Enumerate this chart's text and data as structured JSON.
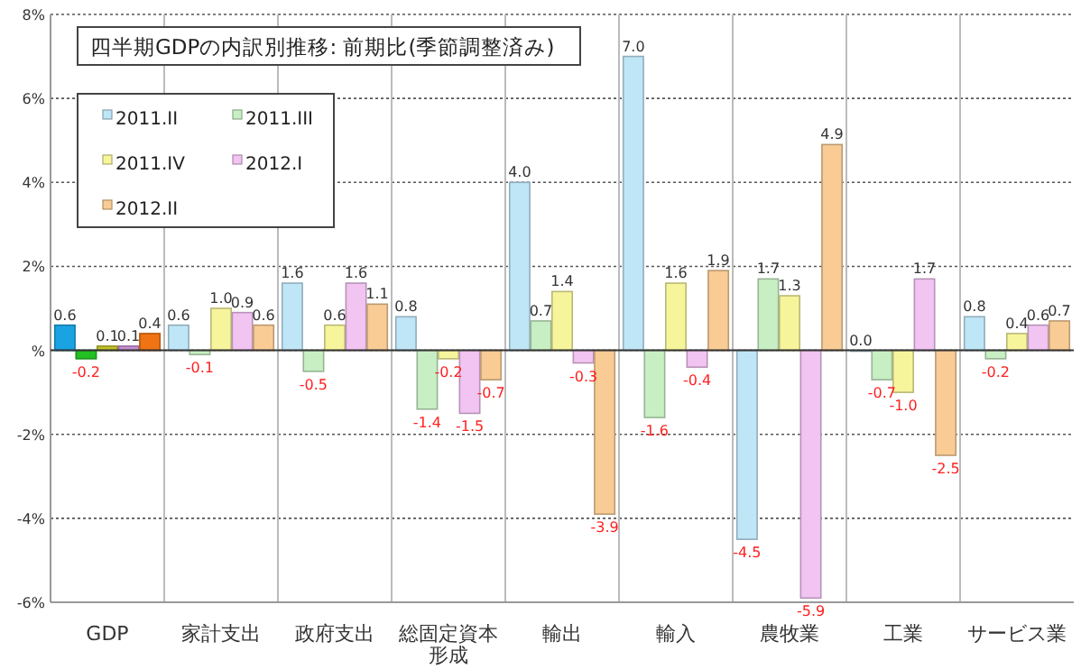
{
  "chart_data": {
    "type": "bar",
    "title": "四半期GDPの内訳別推移: 前期比(季節調整済み)",
    "categories": [
      "GDP",
      "家計支出",
      "政府支出",
      "総固定資本形成",
      "輸出",
      "輸入",
      "農牧業",
      "工業",
      "サービス業"
    ],
    "series": [
      {
        "name": "2011.II",
        "color": "#bfe6f7",
        "colors": [
          "#1aa3e3",
          "#bfe6f7",
          "#bfe6f7",
          "#bfe6f7",
          "#bfe6f7",
          "#bfe6f7",
          "#bfe6f7",
          "#bfe6f7",
          "#bfe6f7"
        ],
        "values": [
          0.6,
          0.6,
          1.6,
          0.8,
          4.0,
          7.0,
          -4.5,
          0.0,
          0.8
        ],
        "value_labels": [
          "0.6",
          "0.6",
          "1.6",
          "0.8",
          "4.0",
          "7.0",
          "-4.5",
          "0.0",
          "0.8"
        ]
      },
      {
        "name": "2011.III",
        "color": "#c8efc4",
        "colors": [
          "#22c022",
          "#c8efc4",
          "#c8efc4",
          "#c8efc4",
          "#c8efc4",
          "#c8efc4",
          "#c8efc4",
          "#c8efc4",
          "#c8efc4"
        ],
        "values": [
          -0.2,
          -0.1,
          -0.5,
          -1.4,
          0.7,
          -1.6,
          1.7,
          -0.7,
          -0.2
        ],
        "value_labels": [
          "-0.2",
          "-0.1",
          "-0.5",
          "-1.4",
          "0.7",
          "-1.6",
          "1.7",
          "-0.7",
          "-0.2"
        ]
      },
      {
        "name": "2011.IV",
        "color": "#f7f59c",
        "colors": [
          "#c2c22a",
          "#f7f59c",
          "#f7f59c",
          "#f7f59c",
          "#f7f59c",
          "#f7f59c",
          "#f7f59c",
          "#f7f59c",
          "#f7f59c"
        ],
        "values": [
          0.1,
          1.0,
          0.6,
          -0.2,
          1.4,
          1.6,
          1.3,
          -1.0,
          0.4
        ],
        "value_labels": [
          "0.1",
          "1.0",
          "0.6",
          "-0.2",
          "1.4",
          "1.6",
          "1.3",
          "-1.0",
          "0.4"
        ]
      },
      {
        "name": "2012.I",
        "color": "#f2c4f2",
        "colors": [
          "#c68ed2",
          "#f2c4f2",
          "#f2c4f2",
          "#f2c4f2",
          "#f2c4f2",
          "#f2c4f2",
          "#f2c4f2",
          "#f2c4f2",
          "#f2c4f2"
        ],
        "values": [
          0.1,
          0.9,
          1.6,
          -1.5,
          -0.3,
          -0.4,
          -5.9,
          1.7,
          0.6
        ],
        "value_labels": [
          "0.1",
          "0.9",
          "1.6",
          "-1.5",
          "-0.3",
          "-0.4",
          "-5.9",
          "1.7",
          "0.6"
        ]
      },
      {
        "name": "2012.II",
        "color": "#f9cc95",
        "colors": [
          "#f07414",
          "#f9cc95",
          "#f9cc95",
          "#f9cc95",
          "#f9cc95",
          "#f9cc95",
          "#f9cc95",
          "#f9cc95",
          "#f9cc95"
        ],
        "values": [
          0.4,
          0.6,
          1.1,
          -0.7,
          -3.9,
          1.9,
          4.9,
          -2.5,
          0.7
        ],
        "value_labels": [
          "0.4",
          "0.6",
          "1.1",
          "-0.7",
          "-3.9",
          "1.9",
          "4.9",
          "-2.5",
          "0.7"
        ]
      }
    ],
    "ylim": [
      -6,
      8
    ],
    "yticks": [
      {
        "value": -6,
        "label": "-6%"
      },
      {
        "value": -4,
        "label": "-4%"
      },
      {
        "value": -2,
        "label": "-2%"
      },
      {
        "value": 0,
        "label": "%"
      },
      {
        "value": 2,
        "label": "2%"
      },
      {
        "value": 4,
        "label": "4%"
      },
      {
        "value": 6,
        "label": "6%"
      },
      {
        "value": 8,
        "label": "8%"
      }
    ],
    "grid": true,
    "legend": "top left"
  }
}
